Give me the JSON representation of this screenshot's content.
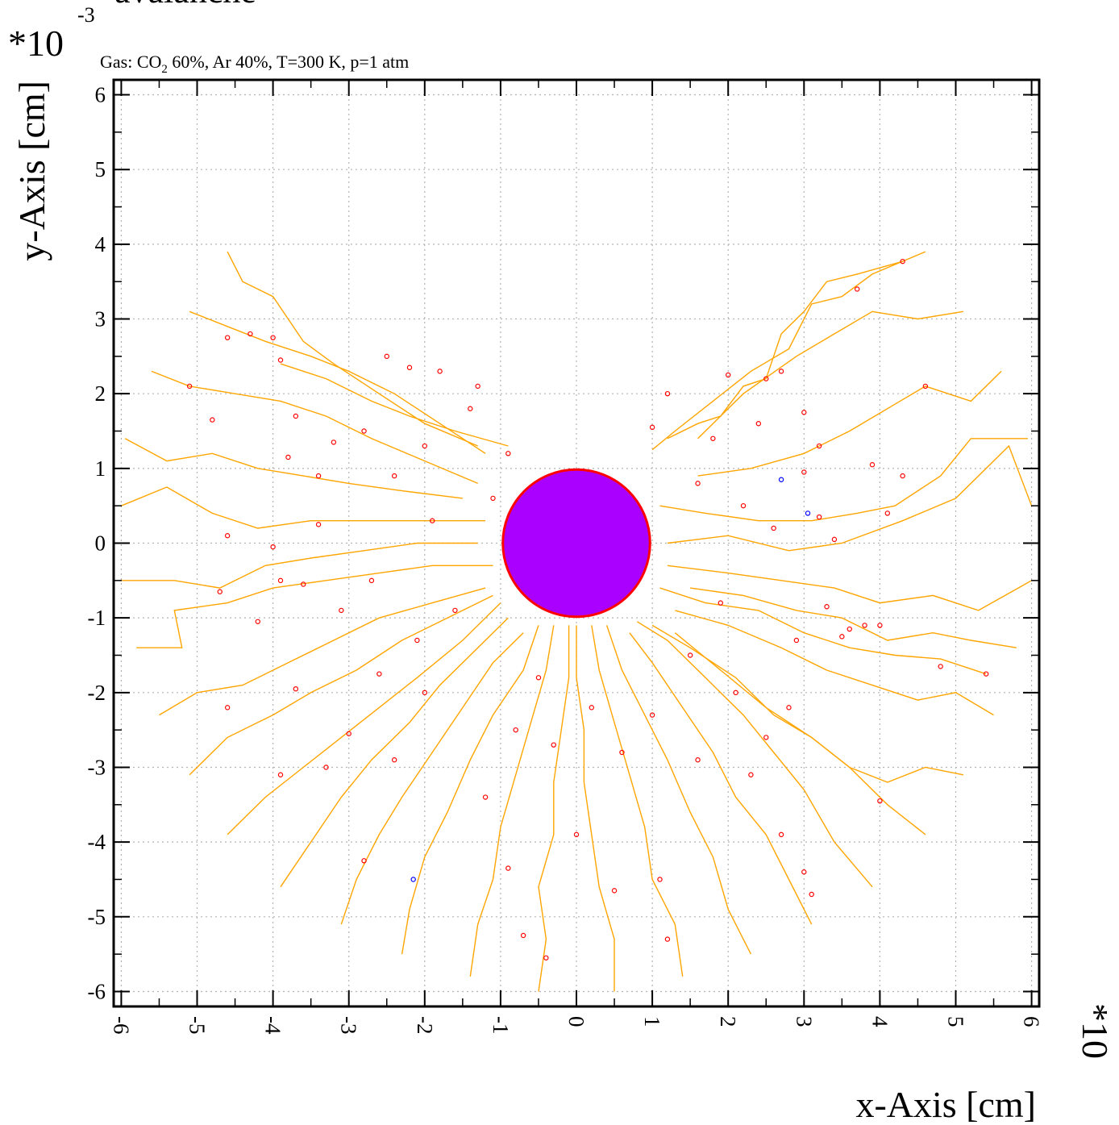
{
  "chart_data": {
    "type": "scatter",
    "title": "avalanche",
    "subtitle_parts": {
      "prefix": "Gas: CO",
      "subscript": "2",
      "suffix": " 60%, Ar 40%, T=300 K, p=1 atm"
    },
    "xlabel": "x-Axis [cm]",
    "ylabel": "y-Axis [cm]",
    "y_multiplier": {
      "base": "*10",
      "exponent": "-3"
    },
    "x_multiplier": {
      "base": "*10"
    },
    "xlim": [
      -6.1,
      6.1
    ],
    "ylim": [
      -6.2,
      6.2
    ],
    "x_ticks": [
      -6,
      -5,
      -4,
      -3,
      -2,
      -1,
      0,
      1,
      2,
      3,
      4,
      5,
      6
    ],
    "y_ticks": [
      -6,
      -5,
      -4,
      -3,
      -2,
      -1,
      0,
      1,
      2,
      3,
      4,
      5,
      6
    ],
    "x_tick_labels": [
      "-6",
      "-5",
      "-4",
      "-3",
      "-2",
      "-1",
      "0",
      "1",
      "2",
      "3",
      "4",
      "5",
      "6"
    ],
    "y_tick_labels": [
      "-6",
      "-5",
      "-4",
      "-3",
      "-2",
      "-1",
      "0",
      "1",
      "2",
      "3",
      "4",
      "5",
      "6"
    ],
    "grid": true,
    "colors": {
      "drift_line": "#ffa500",
      "electron_endpoint": "#ff0000",
      "ion_endpoint": "#0000ff",
      "wire_fill": "#aa00ff",
      "wire_edge": "#ff0000",
      "grid": "#b4b4b4"
    },
    "wire": {
      "center": [
        0,
        0
      ],
      "radius": 0.97
    },
    "tracks": [
      [
        [
          4.3,
          3.77
        ],
        [
          3.7,
          3.6
        ],
        [
          3.3,
          3.5
        ],
        [
          3.0,
          3.1
        ],
        [
          2.7,
          2.8
        ],
        [
          2.5,
          2.2
        ],
        [
          2.2,
          2.1
        ],
        [
          1.9,
          1.7
        ],
        [
          1.6,
          1.6
        ],
        [
          1.2,
          1.4
        ]
      ],
      [
        [
          4.6,
          3.9
        ],
        [
          3.9,
          3.6
        ],
        [
          3.5,
          3.3
        ],
        [
          3.1,
          3.2
        ],
        [
          2.8,
          2.6
        ],
        [
          2.3,
          2.3
        ],
        [
          1.8,
          1.9
        ],
        [
          1.3,
          1.5
        ],
        [
          1.0,
          1.25
        ]
      ],
      [
        [
          5.1,
          3.1
        ],
        [
          4.5,
          3.0
        ],
        [
          3.9,
          3.1
        ],
        [
          3.4,
          2.8
        ],
        [
          2.9,
          2.5
        ],
        [
          2.2,
          2.0
        ],
        [
          1.6,
          1.4
        ]
      ],
      [
        [
          5.6,
          2.3
        ],
        [
          5.2,
          1.9
        ],
        [
          4.6,
          2.1
        ],
        [
          4.1,
          1.8
        ],
        [
          3.6,
          1.5
        ],
        [
          3.0,
          1.2
        ],
        [
          2.3,
          1.0
        ],
        [
          1.6,
          0.9
        ]
      ],
      [
        [
          5.95,
          1.4
        ],
        [
          5.2,
          1.4
        ],
        [
          4.8,
          0.9
        ],
        [
          4.2,
          0.5
        ],
        [
          3.7,
          0.4
        ],
        [
          3.1,
          0.3
        ],
        [
          2.4,
          0.3
        ],
        [
          1.7,
          0.4
        ],
        [
          1.1,
          0.5
        ]
      ],
      [
        [
          6.0,
          0.5
        ],
        [
          5.7,
          1.3
        ],
        [
          5.0,
          0.6
        ],
        [
          4.3,
          0.3
        ],
        [
          3.5,
          0.0
        ],
        [
          2.8,
          -0.1
        ],
        [
          2.0,
          0.1
        ],
        [
          1.2,
          0.0
        ]
      ],
      [
        [
          6.0,
          -0.5
        ],
        [
          5.3,
          -0.9
        ],
        [
          4.7,
          -0.7
        ],
        [
          4.0,
          -0.8
        ],
        [
          3.4,
          -0.6
        ],
        [
          2.7,
          -0.5
        ],
        [
          2.0,
          -0.4
        ],
        [
          1.2,
          -0.3
        ]
      ],
      [
        [
          5.8,
          -1.4
        ],
        [
          5.2,
          -1.3
        ],
        [
          4.7,
          -1.2
        ],
        [
          4.1,
          -1.3
        ],
        [
          3.5,
          -1.0
        ],
        [
          2.9,
          -0.9
        ],
        [
          2.2,
          -0.7
        ],
        [
          1.5,
          -0.6
        ]
      ],
      [
        [
          5.4,
          -1.75
        ],
        [
          4.8,
          -1.55
        ],
        [
          4.2,
          -1.5
        ],
        [
          3.6,
          -1.4
        ],
        [
          3.0,
          -1.2
        ],
        [
          2.4,
          -0.9
        ],
        [
          1.7,
          -0.8
        ],
        [
          1.1,
          -0.6
        ]
      ],
      [
        [
          5.5,
          -2.3
        ],
        [
          5.0,
          -2.0
        ],
        [
          4.5,
          -2.1
        ],
        [
          3.9,
          -1.9
        ],
        [
          3.3,
          -1.7
        ],
        [
          2.7,
          -1.4
        ],
        [
          2.0,
          -1.1
        ],
        [
          1.3,
          -0.9
        ]
      ],
      [
        [
          5.1,
          -3.1
        ],
        [
          4.6,
          -3.0
        ],
        [
          4.1,
          -3.2
        ],
        [
          3.6,
          -3.0
        ],
        [
          3.1,
          -2.6
        ],
        [
          2.5,
          -2.2
        ],
        [
          1.9,
          -1.7
        ],
        [
          1.3,
          -1.2
        ]
      ],
      [
        [
          4.6,
          -3.9
        ],
        [
          4.1,
          -3.5
        ],
        [
          3.6,
          -3.0
        ],
        [
          3.1,
          -2.6
        ],
        [
          2.6,
          -2.3
        ],
        [
          2.1,
          -1.8
        ],
        [
          1.5,
          -1.4
        ],
        [
          1.0,
          -1.1
        ]
      ],
      [
        [
          3.9,
          -4.6
        ],
        [
          3.4,
          -4.0
        ],
        [
          3.0,
          -3.3
        ],
        [
          2.6,
          -2.8
        ],
        [
          2.2,
          -2.3
        ],
        [
          1.7,
          -1.8
        ],
        [
          1.2,
          -1.3
        ],
        [
          0.8,
          -1.05
        ]
      ],
      [
        [
          3.1,
          -5.1
        ],
        [
          2.8,
          -4.5
        ],
        [
          2.5,
          -3.9
        ],
        [
          2.1,
          -3.4
        ],
        [
          1.8,
          -2.8
        ],
        [
          1.4,
          -2.2
        ],
        [
          1.0,
          -1.6
        ],
        [
          0.7,
          -1.2
        ]
      ],
      [
        [
          2.3,
          -5.5
        ],
        [
          2.0,
          -4.9
        ],
        [
          1.8,
          -4.2
        ],
        [
          1.5,
          -3.6
        ],
        [
          1.2,
          -2.9
        ],
        [
          0.9,
          -2.3
        ],
        [
          0.6,
          -1.7
        ],
        [
          0.4,
          -1.1
        ]
      ],
      [
        [
          1.4,
          -5.8
        ],
        [
          1.3,
          -5.1
        ],
        [
          1.0,
          -4.5
        ],
        [
          0.9,
          -3.8
        ],
        [
          0.7,
          -3.1
        ],
        [
          0.5,
          -2.4
        ],
        [
          0.3,
          -1.7
        ],
        [
          0.2,
          -1.1
        ]
      ],
      [
        [
          0.5,
          -6.0
        ],
        [
          0.5,
          -5.3
        ],
        [
          0.3,
          -4.6
        ],
        [
          0.2,
          -3.9
        ],
        [
          0.1,
          -3.2
        ],
        [
          0.1,
          -2.5
        ],
        [
          0.0,
          -1.8
        ],
        [
          0.0,
          -1.1
        ]
      ],
      [
        [
          -0.5,
          -6.0
        ],
        [
          -0.4,
          -5.3
        ],
        [
          -0.5,
          -4.6
        ],
        [
          -0.3,
          -3.9
        ],
        [
          -0.3,
          -3.2
        ],
        [
          -0.2,
          -2.5
        ],
        [
          -0.1,
          -1.8
        ],
        [
          -0.1,
          -1.1
        ]
      ],
      [
        [
          -1.4,
          -5.8
        ],
        [
          -1.3,
          -5.1
        ],
        [
          -1.1,
          -4.5
        ],
        [
          -1.0,
          -3.8
        ],
        [
          -0.8,
          -3.1
        ],
        [
          -0.6,
          -2.4
        ],
        [
          -0.4,
          -1.7
        ],
        [
          -0.3,
          -1.1
        ]
      ],
      [
        [
          -2.3,
          -5.5
        ],
        [
          -2.2,
          -4.9
        ],
        [
          -2.0,
          -4.2
        ],
        [
          -1.7,
          -3.6
        ],
        [
          -1.4,
          -2.9
        ],
        [
          -1.1,
          -2.3
        ],
        [
          -0.7,
          -1.7
        ],
        [
          -0.5,
          -1.1
        ]
      ],
      [
        [
          -3.1,
          -5.1
        ],
        [
          -2.9,
          -4.5
        ],
        [
          -2.6,
          -3.9
        ],
        [
          -2.3,
          -3.4
        ],
        [
          -1.9,
          -2.8
        ],
        [
          -1.5,
          -2.2
        ],
        [
          -1.1,
          -1.6
        ],
        [
          -0.7,
          -1.2
        ]
      ],
      [
        [
          -3.9,
          -4.6
        ],
        [
          -3.5,
          -4.0
        ],
        [
          -3.1,
          -3.4
        ],
        [
          -2.7,
          -2.9
        ],
        [
          -2.2,
          -2.4
        ],
        [
          -1.8,
          -1.9
        ],
        [
          -1.3,
          -1.4
        ],
        [
          -0.9,
          -1.0
        ]
      ],
      [
        [
          -4.6,
          -3.9
        ],
        [
          -4.1,
          -3.4
        ],
        [
          -3.6,
          -3.0
        ],
        [
          -3.1,
          -2.6
        ],
        [
          -2.6,
          -2.2
        ],
        [
          -2.1,
          -1.8
        ],
        [
          -1.5,
          -1.3
        ],
        [
          -1.0,
          -0.8
        ]
      ],
      [
        [
          -5.1,
          -3.1
        ],
        [
          -4.6,
          -2.6
        ],
        [
          -4.0,
          -2.3
        ],
        [
          -3.5,
          -2.0
        ],
        [
          -2.9,
          -1.7
        ],
        [
          -2.3,
          -1.3
        ],
        [
          -1.7,
          -1.0
        ],
        [
          -1.1,
          -0.7
        ]
      ],
      [
        [
          -5.5,
          -2.3
        ],
        [
          -5.0,
          -2.0
        ],
        [
          -4.4,
          -1.9
        ],
        [
          -3.8,
          -1.6
        ],
        [
          -3.2,
          -1.3
        ],
        [
          -2.6,
          -1.0
        ],
        [
          -1.9,
          -0.8
        ],
        [
          -1.2,
          -0.6
        ]
      ],
      [
        [
          -5.8,
          -1.4
        ],
        [
          -5.2,
          -1.4
        ],
        [
          -5.3,
          -0.9
        ],
        [
          -4.6,
          -0.8
        ],
        [
          -4.0,
          -0.6
        ],
        [
          -3.3,
          -0.5
        ],
        [
          -2.6,
          -0.4
        ],
        [
          -1.9,
          -0.3
        ],
        [
          -1.1,
          -0.3
        ]
      ],
      [
        [
          -6.0,
          -0.5
        ],
        [
          -5.3,
          -0.5
        ],
        [
          -4.7,
          -0.6
        ],
        [
          -4.1,
          -0.3
        ],
        [
          -3.5,
          -0.2
        ],
        [
          -2.8,
          -0.1
        ],
        [
          -2.1,
          0.0
        ],
        [
          -1.3,
          0.0
        ]
      ],
      [
        [
          -6.0,
          0.5
        ],
        [
          -5.4,
          0.75
        ],
        [
          -4.8,
          0.4
        ],
        [
          -4.2,
          0.2
        ],
        [
          -3.5,
          0.3
        ],
        [
          -2.8,
          0.3
        ],
        [
          -2.1,
          0.3
        ],
        [
          -1.2,
          0.3
        ]
      ],
      [
        [
          -5.95,
          1.4
        ],
        [
          -5.4,
          1.1
        ],
        [
          -4.8,
          1.2
        ],
        [
          -4.2,
          1.0
        ],
        [
          -3.6,
          0.9
        ],
        [
          -3.0,
          0.8
        ],
        [
          -2.3,
          0.7
        ],
        [
          -1.5,
          0.6
        ]
      ],
      [
        [
          -5.6,
          2.3
        ],
        [
          -5.1,
          2.1
        ],
        [
          -4.5,
          2.0
        ],
        [
          -3.9,
          1.9
        ],
        [
          -3.3,
          1.7
        ],
        [
          -2.7,
          1.4
        ],
        [
          -2.0,
          1.1
        ],
        [
          -1.3,
          0.8
        ]
      ],
      [
        [
          -5.1,
          3.1
        ],
        [
          -4.6,
          2.9
        ],
        [
          -4.1,
          2.7
        ],
        [
          -3.5,
          2.5
        ],
        [
          -3.0,
          2.3
        ],
        [
          -2.4,
          2.0
        ],
        [
          -1.8,
          1.6
        ],
        [
          -1.2,
          1.2
        ]
      ],
      [
        [
          -4.6,
          3.9
        ],
        [
          -4.4,
          3.5
        ],
        [
          -4.0,
          3.3
        ],
        [
          -3.6,
          2.7
        ],
        [
          -3.2,
          2.4
        ],
        [
          -2.6,
          2.0
        ],
        [
          -2.0,
          1.6
        ],
        [
          -1.3,
          1.3
        ]
      ],
      [
        [
          -3.9,
          2.4
        ],
        [
          -3.3,
          2.2
        ],
        [
          -2.7,
          1.9
        ],
        [
          -2.2,
          1.7
        ],
        [
          -1.6,
          1.5
        ],
        [
          -0.9,
          1.3
        ]
      ]
    ],
    "electron_endpoints": [
      [
        4.3,
        3.77
      ],
      [
        3.7,
        3.4
      ],
      [
        2.5,
        2.2
      ],
      [
        4.6,
        2.1
      ],
      [
        4.3,
        0.9
      ],
      [
        4.1,
        0.4
      ],
      [
        3.4,
        0.05
      ],
      [
        4.8,
        -1.65
      ],
      [
        5.4,
        -1.75
      ],
      [
        4.0,
        -3.45
      ],
      [
        3.0,
        -4.4
      ],
      [
        3.1,
        -4.7
      ],
      [
        2.7,
        -3.9
      ],
      [
        1.2,
        -5.3
      ],
      [
        1.1,
        -4.5
      ],
      [
        0.5,
        -4.65
      ],
      [
        0.0,
        -3.9
      ],
      [
        -0.4,
        -5.55
      ],
      [
        -0.7,
        -5.25
      ],
      [
        -0.9,
        -4.35
      ],
      [
        -2.8,
        -4.25
      ],
      [
        -3.9,
        -3.1
      ],
      [
        -3.3,
        -3.0
      ],
      [
        -4.6,
        -2.2
      ],
      [
        -4.7,
        -0.65
      ],
      [
        -4.6,
        0.1
      ],
      [
        -4.0,
        -0.05
      ],
      [
        -5.1,
        2.1
      ],
      [
        -4.8,
        1.65
      ],
      [
        -4.6,
        2.75
      ],
      [
        -4.3,
        2.8
      ],
      [
        -4.0,
        2.75
      ],
      [
        -3.9,
        2.45
      ],
      [
        -3.7,
        1.7
      ],
      [
        -3.8,
        1.15
      ],
      [
        -3.4,
        0.9
      ],
      [
        -3.4,
        0.25
      ],
      [
        -2.5,
        2.5
      ],
      [
        -2.2,
        2.35
      ],
      [
        -1.8,
        2.3
      ],
      [
        -1.4,
        1.8
      ],
      [
        -0.9,
        1.2
      ],
      [
        1.0,
        1.55
      ],
      [
        1.2,
        2.0
      ],
      [
        2.0,
        2.25
      ],
      [
        2.7,
        2.3
      ],
      [
        3.2,
        1.3
      ],
      [
        3.0,
        0.95
      ],
      [
        3.2,
        0.35
      ],
      [
        3.8,
        -1.1
      ],
      [
        4.0,
        -1.1
      ],
      [
        3.5,
        -1.25
      ],
      [
        3.6,
        -1.15
      ],
      [
        2.5,
        -2.6
      ],
      [
        2.3,
        -3.1
      ],
      [
        1.6,
        -2.9
      ],
      [
        -1.2,
        -3.4
      ],
      [
        -2.0,
        -2.0
      ],
      [
        -2.4,
        -2.9
      ],
      [
        -3.0,
        -2.55
      ],
      [
        -2.6,
        -1.75
      ],
      [
        -3.7,
        -1.95
      ],
      [
        -4.2,
        -1.05
      ],
      [
        -3.9,
        -0.5
      ],
      [
        -2.4,
        0.9
      ],
      [
        -2.0,
        1.3
      ],
      [
        -1.1,
        0.6
      ],
      [
        1.5,
        -1.5
      ],
      [
        1.9,
        -0.8
      ],
      [
        2.2,
        0.5
      ],
      [
        1.6,
        0.8
      ],
      [
        -1.6,
        -0.9
      ],
      [
        -2.1,
        -1.3
      ],
      [
        -2.8,
        1.5
      ],
      [
        -3.2,
        1.35
      ],
      [
        2.4,
        1.6
      ],
      [
        3.0,
        1.75
      ],
      [
        3.3,
        -0.85
      ],
      [
        2.8,
        -2.2
      ],
      [
        -1.9,
        0.3
      ],
      [
        -0.8,
        -2.5
      ],
      [
        0.6,
        -2.8
      ],
      [
        0.2,
        -2.2
      ],
      [
        -0.3,
        -2.7
      ],
      [
        1.0,
        -2.3
      ],
      [
        2.1,
        -2.0
      ],
      [
        2.6,
        0.2
      ],
      [
        -2.7,
        -0.5
      ],
      [
        -3.1,
        -0.9
      ],
      [
        3.9,
        1.05
      ],
      [
        -3.6,
        -0.55
      ],
      [
        2.9,
        -1.3
      ],
      [
        -1.3,
        2.1
      ],
      [
        -0.5,
        -1.8
      ],
      [
        1.8,
        1.4
      ]
    ],
    "ion_endpoints": [
      [
        2.7,
        0.85
      ],
      [
        3.05,
        0.4
      ],
      [
        -2.15,
        -4.5
      ]
    ]
  }
}
